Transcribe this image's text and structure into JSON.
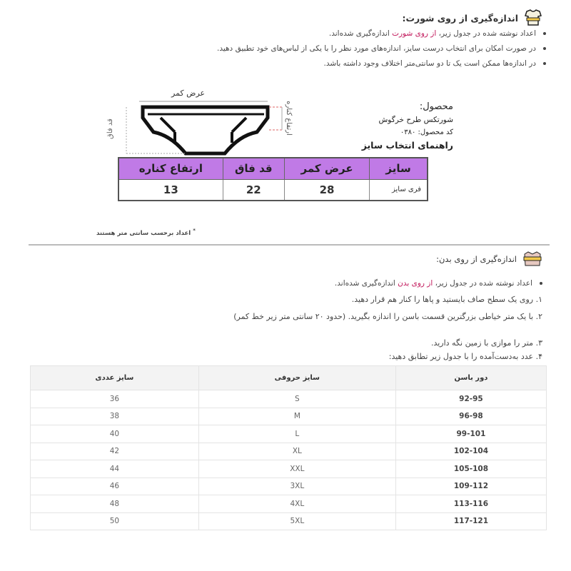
{
  "short_section": {
    "title": "اندازه‌گیری از روی شورت:",
    "icon": "shorts-measure-icon",
    "bullets": [
      {
        "pre": "اعداد نوشته شده در جدول زیر، ",
        "highlight": "از روی شورت",
        "post": " اندازه‌گیری شده‌اند."
      },
      {
        "pre": "در صورت امکان برای انتخاب درست سایز، اندازه‌های مورد نظر را با یکی از لباس‌های خود تطبیق دهید.",
        "highlight": "",
        "post": ""
      },
      {
        "pre": "در اندازه‌ها ممکن است یک تا دو سانتی‌متر اختلاف وجود داشته باشد.",
        "highlight": "",
        "post": ""
      }
    ],
    "diagram": {
      "waist_label": "عرض کمر",
      "rise_label": "قد فاق",
      "side_label": "ارتفاع کناره"
    },
    "product": {
      "label": "محصول:",
      "name": "شورتکس طرح خرگوش",
      "code": "کد محصول: ۰۳۸۰",
      "guide_title": "راهنمای انتخاب سایز"
    },
    "table": {
      "headers": [
        "سایز",
        "عرض کمر",
        "قد فاق",
        "ارتفاع کناره"
      ],
      "rows": [
        [
          "فری سایز",
          "28",
          "22",
          "13"
        ]
      ]
    },
    "footnote": "اعداد برحسب سانتی متر هستند"
  },
  "body_section": {
    "title": "اندازه‌گیری از روی بدن:",
    "icon": "body-measure-icon",
    "bullet": {
      "pre": "اعداد نوشته شده در جدول زیر، ",
      "highlight": "از روی بدن",
      "post": " اندازه‌گیری شده‌اند."
    },
    "steps": [
      "۱. روی یک سطح صاف بایستید و پاها را کنار هم قرار دهید.",
      "۲. با یک متر خیاطی بزرگترین قسمت باسن را اندازه بگیرید. (حدود ۲۰ سانتی متر زیر خط کمر)",
      "۳. متر را موازی با زمین نگه دارید.",
      "۴. عدد به‌دست‌آمده را با جدول زیر تطابق دهید:"
    ],
    "table": {
      "headers": [
        "دور باسن",
        "سایز حروفی",
        "سایز عددی"
      ],
      "rows": [
        [
          "92-95",
          "S",
          "36"
        ],
        [
          "96-98",
          "M",
          "38"
        ],
        [
          "99-101",
          "L",
          "40"
        ],
        [
          "102-104",
          "XL",
          "42"
        ],
        [
          "105-108",
          "XXL",
          "44"
        ],
        [
          "109-112",
          "3XL",
          "46"
        ],
        [
          "113-116",
          "4XL",
          "48"
        ],
        [
          "117-121",
          "5XL",
          "50"
        ]
      ]
    }
  },
  "colors": {
    "accent": "#c2185b",
    "table_header": "#c07ae6"
  }
}
